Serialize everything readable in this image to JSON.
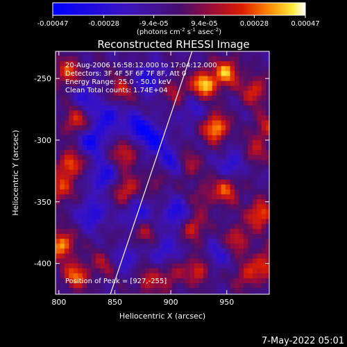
{
  "chart_data": {
    "type": "heatmap",
    "title": "Reconstructed RHESSI Image",
    "xlabel": "Heliocentric X (arcsec)",
    "ylabel": "Heliocentric Y (arcsec)",
    "xlim": [
      797,
      988
    ],
    "ylim": [
      -425,
      -228
    ],
    "x_ticks": [
      800,
      850,
      900,
      950
    ],
    "y_ticks": [
      -250,
      -300,
      -350,
      -400
    ],
    "colorbar": {
      "range": [
        -0.00047,
        0.00047
      ],
      "tick_values": [
        -0.00047,
        -0.00028,
        -9.4e-05,
        9.4e-05,
        0.00028,
        0.00047
      ],
      "tick_labels": [
        "-0.00047",
        "-0.00028",
        "-9.4e-05",
        "9.4e-05",
        "0.00028",
        "0.00047"
      ],
      "units_prefix": "(photons cm",
      "units_exp1": "-2",
      "units_mid": " s",
      "units_exp2": "-1",
      "units_suffix": " asec",
      "units_exp3": "-2",
      "units_end": ")"
    },
    "annotations": [
      "20-Aug-2006 16:58:12.000 to 17:04:12.000",
      "Detectors: 3F 4F 5F 6F 7F 8F, Att 0",
      "Energy Range: 25.0 - 50.0 keV",
      "Clean     Total counts: 1.74E+04"
    ],
    "peak_label": "Position of Peak = [927,-255]",
    "peak": [
      927,
      -255
    ],
    "limb_line": [
      [
        846,
        -425
      ],
      [
        919,
        -228
      ]
    ],
    "hot_spots": [
      {
        "x": 930,
        "y": -255,
        "v": 0.00047
      },
      {
        "x": 940,
        "y": -290,
        "v": 0.00045
      },
      {
        "x": 950,
        "y": -245,
        "v": 0.0004
      },
      {
        "x": 975,
        "y": -260,
        "v": 0.0003
      },
      {
        "x": 808,
        "y": -245,
        "v": 0.00032
      },
      {
        "x": 815,
        "y": -285,
        "v": 0.00028
      },
      {
        "x": 810,
        "y": -320,
        "v": 0.00036
      },
      {
        "x": 800,
        "y": -340,
        "v": 0.0003
      },
      {
        "x": 802,
        "y": -385,
        "v": 0.00042
      },
      {
        "x": 815,
        "y": -410,
        "v": 0.00036
      },
      {
        "x": 855,
        "y": -260,
        "v": 0.00025
      },
      {
        "x": 860,
        "y": -310,
        "v": 0.00028
      },
      {
        "x": 860,
        "y": -340,
        "v": 0.0003
      },
      {
        "x": 875,
        "y": -375,
        "v": 0.0002
      },
      {
        "x": 880,
        "y": -415,
        "v": 0.00022
      },
      {
        "x": 890,
        "y": -330,
        "v": 0.00018
      },
      {
        "x": 905,
        "y": -260,
        "v": 0.0002
      },
      {
        "x": 915,
        "y": -320,
        "v": 0.00022
      },
      {
        "x": 920,
        "y": -370,
        "v": 0.00028
      },
      {
        "x": 925,
        "y": -405,
        "v": 0.0003
      },
      {
        "x": 950,
        "y": -340,
        "v": 0.00032
      },
      {
        "x": 960,
        "y": -380,
        "v": 0.00026
      },
      {
        "x": 975,
        "y": -310,
        "v": 0.0002
      },
      {
        "x": 980,
        "y": -360,
        "v": 0.00038
      },
      {
        "x": 968,
        "y": -410,
        "v": 0.00025
      },
      {
        "x": 985,
        "y": -400,
        "v": 0.0003
      },
      {
        "x": 985,
        "y": -290,
        "v": 0.00024
      },
      {
        "x": 900,
        "y": -410,
        "v": 0.0002
      },
      {
        "x": 840,
        "y": -400,
        "v": 0.00018
      },
      {
        "x": 930,
        "y": -345,
        "v": 0.00016
      }
    ],
    "cold_spots": [
      {
        "x": 830,
        "y": -300,
        "v": -0.00035
      },
      {
        "x": 840,
        "y": -330,
        "v": -0.0003
      },
      {
        "x": 870,
        "y": -290,
        "v": -0.00034
      },
      {
        "x": 880,
        "y": -250,
        "v": -0.00028
      },
      {
        "x": 885,
        "y": -300,
        "v": -0.00032
      },
      {
        "x": 900,
        "y": -320,
        "v": -0.0003
      },
      {
        "x": 870,
        "y": -360,
        "v": -0.00026
      },
      {
        "x": 905,
        "y": -360,
        "v": -0.0003
      },
      {
        "x": 830,
        "y": -360,
        "v": -0.00028
      },
      {
        "x": 845,
        "y": -280,
        "v": -0.0003
      },
      {
        "x": 955,
        "y": -320,
        "v": -0.00024
      },
      {
        "x": 940,
        "y": -395,
        "v": -0.0002
      },
      {
        "x": 895,
        "y": -390,
        "v": -0.00022
      },
      {
        "x": 860,
        "y": -395,
        "v": -0.0002
      },
      {
        "x": 920,
        "y": -275,
        "v": -0.00018
      },
      {
        "x": 825,
        "y": -265,
        "v": -0.00022
      }
    ]
  },
  "footer": {
    "date_stamp": "7-May-2022 05:01"
  }
}
